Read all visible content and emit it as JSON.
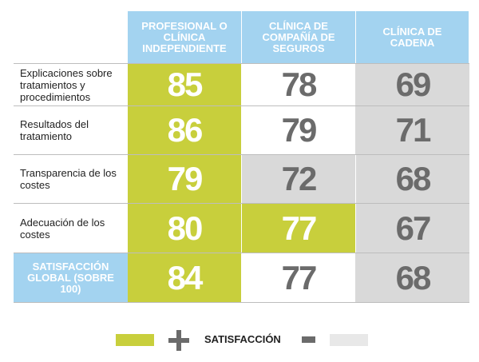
{
  "chart_data": {
    "type": "table",
    "columns": [
      "PROFESIONAL O CLÍNICA INDEPENDIENTE",
      "CLÍNICA DE COMPAÑÍA DE SEGUROS",
      "CLÍNICA DE CADENA"
    ],
    "rows": [
      {
        "label": "Explicaciones sobre tratamientos y procedimientos",
        "values": [
          85,
          78,
          69
        ],
        "levels": [
          "high",
          "mid",
          "low"
        ]
      },
      {
        "label": "Resultados del tratamiento",
        "values": [
          86,
          79,
          71
        ],
        "levels": [
          "high",
          "mid",
          "low"
        ]
      },
      {
        "label": "Transparencia de los costes",
        "values": [
          79,
          72,
          68
        ],
        "levels": [
          "high",
          "low",
          "low"
        ]
      },
      {
        "label": "Adecuación de los costes",
        "values": [
          80,
          77,
          67
        ],
        "levels": [
          "high",
          "high",
          "low"
        ]
      },
      {
        "label": "SATISFACCIÓN GLOBAL (SOBRE 100)",
        "values": [
          84,
          77,
          68
        ],
        "levels": [
          "high",
          "mid",
          "low"
        ],
        "is_global": true
      }
    ],
    "legend": {
      "plus": "+",
      "label": "SATISFACCIÓN",
      "minus": "−"
    },
    "colors": {
      "high": "#c8cf3c",
      "mid": "#ffffff",
      "low": "#d9d9d9",
      "header": "#a3d3f0",
      "number_dark": "#6b6b6b"
    }
  }
}
